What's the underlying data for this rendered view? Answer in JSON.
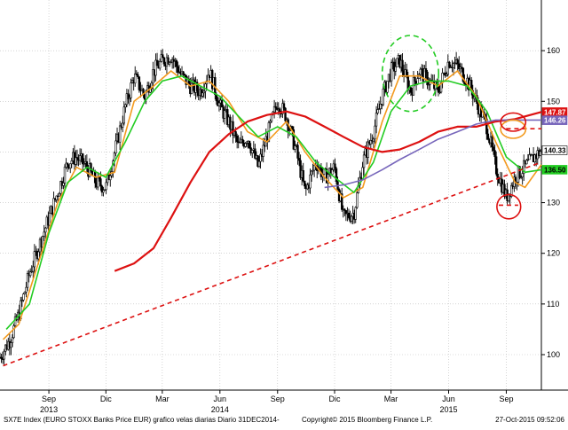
{
  "colors": {
    "candles": "#000000",
    "ma_green": "#22cc22",
    "ma_orange": "#f39a1e",
    "ma_red": "#dd1111",
    "ma_purple": "#7766bb",
    "annotation_red": "#dd1111",
    "annotation_green": "#22cc22",
    "annotation_orange": "#f39a1e",
    "grid": "#bbbbbb"
  },
  "chart_data": {
    "type": "line",
    "title": "",
    "xlabel": "",
    "ylabel": "",
    "ylim": [
      93,
      170
    ],
    "x_range": [
      "2013-06-15",
      "2015-10-27"
    ],
    "grid": true,
    "legend": "none",
    "y_ticks": [
      100,
      110,
      120,
      130,
      140,
      150,
      160
    ],
    "x_ticks": [
      {
        "label": "Sep",
        "date": "2013-09-01"
      },
      {
        "label": "Dic",
        "date": "2013-12-01"
      },
      {
        "label": "Mar",
        "date": "2014-03-01"
      },
      {
        "label": "Jun",
        "date": "2014-06-01"
      },
      {
        "label": "Sep",
        "date": "2014-09-01"
      },
      {
        "label": "Dic",
        "date": "2014-12-01"
      },
      {
        "label": "Mar",
        "date": "2015-03-01"
      },
      {
        "label": "Jun",
        "date": "2015-06-01"
      },
      {
        "label": "Sep",
        "date": "2015-09-01"
      }
    ],
    "year_labels": [
      {
        "label": "2013",
        "date": "2013-09-01"
      },
      {
        "label": "2014",
        "date": "2014-06-01"
      },
      {
        "label": "2015",
        "date": "2015-06-01"
      }
    ],
    "price_tags": [
      {
        "label": "147.87",
        "value": 147.87,
        "color": "#dd1111",
        "text_color": "#ffffff"
      },
      {
        "label": "146.26",
        "value": 146.26,
        "color": "#7766bb",
        "text_color": "#ffffff"
      },
      {
        "label": "140.33",
        "value": 140.33,
        "color": "#ffffff",
        "text_color": "#000000"
      },
      {
        "label": "136.50",
        "value": 136.5,
        "color": "#22cc22",
        "text_color": "#000000"
      }
    ],
    "series": [
      {
        "key": "price",
        "points": [
          [
            "2013-06-15",
            99.5
          ],
          [
            "2013-07-01",
            103
          ],
          [
            "2013-07-15",
            108
          ],
          [
            "2013-08-01",
            116
          ],
          [
            "2013-08-15",
            121
          ],
          [
            "2013-09-01",
            127
          ],
          [
            "2013-09-15",
            132
          ],
          [
            "2013-10-01",
            138
          ],
          [
            "2013-10-15",
            139
          ],
          [
            "2013-11-01",
            137
          ],
          [
            "2013-11-15",
            134
          ],
          [
            "2013-12-01",
            133
          ],
          [
            "2013-12-15",
            140
          ],
          [
            "2014-01-01",
            149
          ],
          [
            "2014-01-15",
            155
          ],
          [
            "2014-02-01",
            151
          ],
          [
            "2014-02-15",
            156
          ],
          [
            "2014-03-01",
            158
          ],
          [
            "2014-03-15",
            159
          ],
          [
            "2014-04-01",
            155
          ],
          [
            "2014-04-15",
            153
          ],
          [
            "2014-05-01",
            152
          ],
          [
            "2014-05-15",
            156
          ],
          [
            "2014-06-01",
            149
          ],
          [
            "2014-06-15",
            146
          ],
          [
            "2014-07-01",
            141
          ],
          [
            "2014-07-15",
            143
          ],
          [
            "2014-08-01",
            137
          ],
          [
            "2014-08-15",
            143
          ],
          [
            "2014-09-01",
            150
          ],
          [
            "2014-09-15",
            147
          ],
          [
            "2014-10-01",
            140
          ],
          [
            "2014-10-15",
            132
          ],
          [
            "2014-11-01",
            138
          ],
          [
            "2014-11-15",
            135
          ],
          [
            "2014-12-01",
            137
          ],
          [
            "2014-12-15",
            127
          ],
          [
            "2015-01-01",
            128
          ],
          [
            "2015-01-15",
            138
          ],
          [
            "2015-02-01",
            144
          ],
          [
            "2015-02-15",
            151
          ],
          [
            "2015-03-01",
            156
          ],
          [
            "2015-03-15",
            158
          ],
          [
            "2015-04-01",
            152
          ],
          [
            "2015-04-15",
            156
          ],
          [
            "2015-05-01",
            154
          ],
          [
            "2015-05-15",
            152
          ],
          [
            "2015-06-01",
            158
          ],
          [
            "2015-06-15",
            157
          ],
          [
            "2015-07-01",
            154
          ],
          [
            "2015-07-15",
            150
          ],
          [
            "2015-08-01",
            145
          ],
          [
            "2015-08-15",
            137
          ],
          [
            "2015-09-01",
            131
          ],
          [
            "2015-09-15",
            135
          ],
          [
            "2015-10-01",
            137
          ],
          [
            "2015-10-15",
            139
          ],
          [
            "2015-10-27",
            140.3
          ]
        ]
      },
      {
        "key": "ma_orange",
        "color_key": "ma_orange",
        "points": [
          [
            "2013-06-20",
            103
          ],
          [
            "2013-07-15",
            106
          ],
          [
            "2013-08-15",
            118
          ],
          [
            "2013-09-15",
            130
          ],
          [
            "2013-10-15",
            137
          ],
          [
            "2013-11-15",
            135
          ],
          [
            "2013-12-15",
            136
          ],
          [
            "2014-01-15",
            150
          ],
          [
            "2014-02-15",
            153
          ],
          [
            "2014-03-15",
            156
          ],
          [
            "2014-04-15",
            153
          ],
          [
            "2014-05-15",
            154
          ],
          [
            "2014-06-15",
            150
          ],
          [
            "2014-07-15",
            144
          ],
          [
            "2014-08-15",
            142
          ],
          [
            "2014-09-15",
            146
          ],
          [
            "2014-10-15",
            140
          ],
          [
            "2014-11-15",
            135
          ],
          [
            "2014-12-15",
            131
          ],
          [
            "2015-01-15",
            133
          ],
          [
            "2015-02-15",
            146
          ],
          [
            "2015-03-15",
            155
          ],
          [
            "2015-04-15",
            155
          ],
          [
            "2015-05-15",
            153
          ],
          [
            "2015-06-15",
            156
          ],
          [
            "2015-07-15",
            151
          ],
          [
            "2015-08-15",
            142
          ],
          [
            "2015-09-15",
            134
          ],
          [
            "2015-10-01",
            133
          ],
          [
            "2015-10-27",
            137.5
          ]
        ]
      },
      {
        "key": "ma_green",
        "color_key": "ma_green",
        "points": [
          [
            "2013-06-25",
            105
          ],
          [
            "2013-08-01",
            110
          ],
          [
            "2013-09-01",
            124
          ],
          [
            "2013-10-01",
            134
          ],
          [
            "2013-11-01",
            137
          ],
          [
            "2013-12-01",
            135
          ],
          [
            "2014-01-01",
            142
          ],
          [
            "2014-02-01",
            150
          ],
          [
            "2014-03-01",
            154
          ],
          [
            "2014-04-01",
            155
          ],
          [
            "2014-05-01",
            153
          ],
          [
            "2014-06-01",
            151
          ],
          [
            "2014-07-01",
            147
          ],
          [
            "2014-08-01",
            143
          ],
          [
            "2014-09-01",
            145
          ],
          [
            "2014-10-01",
            143
          ],
          [
            "2014-11-01",
            138
          ],
          [
            "2014-12-01",
            135
          ],
          [
            "2015-01-01",
            132
          ],
          [
            "2015-02-01",
            138
          ],
          [
            "2015-03-01",
            148
          ],
          [
            "2015-04-01",
            153
          ],
          [
            "2015-05-01",
            154
          ],
          [
            "2015-06-01",
            154
          ],
          [
            "2015-07-01",
            153
          ],
          [
            "2015-08-01",
            148
          ],
          [
            "2015-09-01",
            139
          ],
          [
            "2015-10-01",
            136
          ],
          [
            "2015-10-27",
            136.5
          ]
        ]
      },
      {
        "key": "ma_red",
        "color_key": "ma_red",
        "points": [
          [
            "2013-12-15",
            116.5
          ],
          [
            "2014-01-15",
            118
          ],
          [
            "2014-02-15",
            121
          ],
          [
            "2014-03-15",
            127
          ],
          [
            "2014-04-15",
            134
          ],
          [
            "2014-05-15",
            140
          ],
          [
            "2014-06-15",
            143.5
          ],
          [
            "2014-07-15",
            146
          ],
          [
            "2014-08-15",
            147.3
          ],
          [
            "2014-09-15",
            148
          ],
          [
            "2014-10-15",
            147
          ],
          [
            "2014-11-15",
            145
          ],
          [
            "2014-12-15",
            143
          ],
          [
            "2015-01-15",
            141
          ],
          [
            "2015-02-15",
            140
          ],
          [
            "2015-03-15",
            140.5
          ],
          [
            "2015-04-15",
            142
          ],
          [
            "2015-05-15",
            144
          ],
          [
            "2015-06-15",
            145
          ],
          [
            "2015-07-15",
            145
          ],
          [
            "2015-08-15",
            146
          ],
          [
            "2015-09-15",
            146.5
          ],
          [
            "2015-10-27",
            147.9
          ]
        ]
      },
      {
        "key": "ma_purple",
        "color_key": "ma_purple",
        "points": [
          [
            "2014-11-15",
            133
          ],
          [
            "2014-12-15",
            133.5
          ],
          [
            "2015-01-15",
            134.5
          ],
          [
            "2015-02-15",
            136.5
          ],
          [
            "2015-03-15",
            138.5
          ],
          [
            "2015-04-15",
            140.5
          ],
          [
            "2015-05-15",
            142.5
          ],
          [
            "2015-06-15",
            144
          ],
          [
            "2015-07-15",
            145.5
          ],
          [
            "2015-08-15",
            146.3
          ],
          [
            "2015-09-15",
            146.3
          ],
          [
            "2015-10-27",
            146.3
          ]
        ]
      }
    ],
    "trendlines": [
      {
        "from": [
          "2013-06-20",
          97.8
        ],
        "to": [
          "2015-10-27",
          138
        ],
        "color_key": "annotation_red"
      }
    ],
    "horizontal_lines": [
      {
        "from": "2015-09-01",
        "to": "2015-10-27",
        "value": 144.6,
        "color_key": "annotation_red"
      },
      {
        "from": "2015-08-20",
        "to": "2015-09-20",
        "value": 129.5,
        "color_key": "annotation_red"
      }
    ],
    "ellipses": [
      {
        "center": [
          "2015-04-01",
          155.5
        ],
        "rx_days": 45,
        "ry": 7.5,
        "color_key": "annotation_green",
        "dashed": true
      },
      {
        "center": [
          "2015-09-12",
          144.5
        ],
        "rx_days": 20,
        "ry": 1.8,
        "color_key": "annotation_orange",
        "dashed": false
      },
      {
        "center": [
          "2015-09-12",
          145.9
        ],
        "rx_days": 20,
        "ry": 1.8,
        "color_key": "annotation_red",
        "dashed": false
      },
      {
        "center": [
          "2015-09-05",
          129.2
        ],
        "rx_days": 19,
        "ry": 2.4,
        "color_key": "annotation_red",
        "dashed": false
      }
    ]
  },
  "footer": {
    "left": "SX7E Index (EURO STOXX Banks Price EUR) grafico velas diarias  Diario 31DEC2014-",
    "center": "Copyright© 2015 Bloomberg Finance L.P.",
    "right": "27-Oct-2015 09:52:06"
  }
}
